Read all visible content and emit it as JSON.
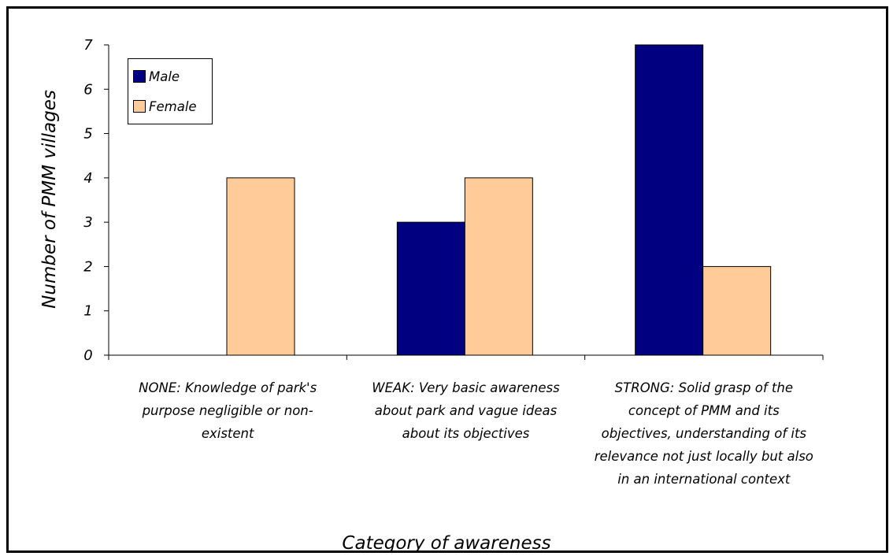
{
  "chart_data": {
    "type": "bar",
    "categories": [
      "NONE: Knowledge of park's purpose negligible or non-existent",
      "WEAK: Very basic awareness about park and vague ideas about its objectives",
      "STRONG: Solid grasp of the concept of PMM and its objectives, understanding of its relevance not just locally but also in an international context"
    ],
    "category_lines": [
      [
        "NONE: Knowledge of park's",
        "purpose negligible or non-",
        "existent"
      ],
      [
        "WEAK: Very basic awareness",
        "about park and vague ideas",
        "about its objectives"
      ],
      [
        "STRONG: Solid grasp of the",
        "concept of PMM and its",
        "objectives, understanding of its",
        "relevance not just locally but also",
        "in an international context"
      ]
    ],
    "series": [
      {
        "name": "Male",
        "color": "#000080",
        "values": [
          0,
          3,
          7
        ]
      },
      {
        "name": "Female",
        "color": "#FFCC99",
        "values": [
          4,
          4,
          2
        ]
      }
    ],
    "xlabel": "Category of awareness",
    "ylabel": "Number of PMM villages",
    "ylim": [
      0,
      7
    ],
    "yticks": [
      "0",
      "1",
      "2",
      "3",
      "4",
      "5",
      "6",
      "7"
    ],
    "grid": false,
    "legend_position": "top-left"
  }
}
